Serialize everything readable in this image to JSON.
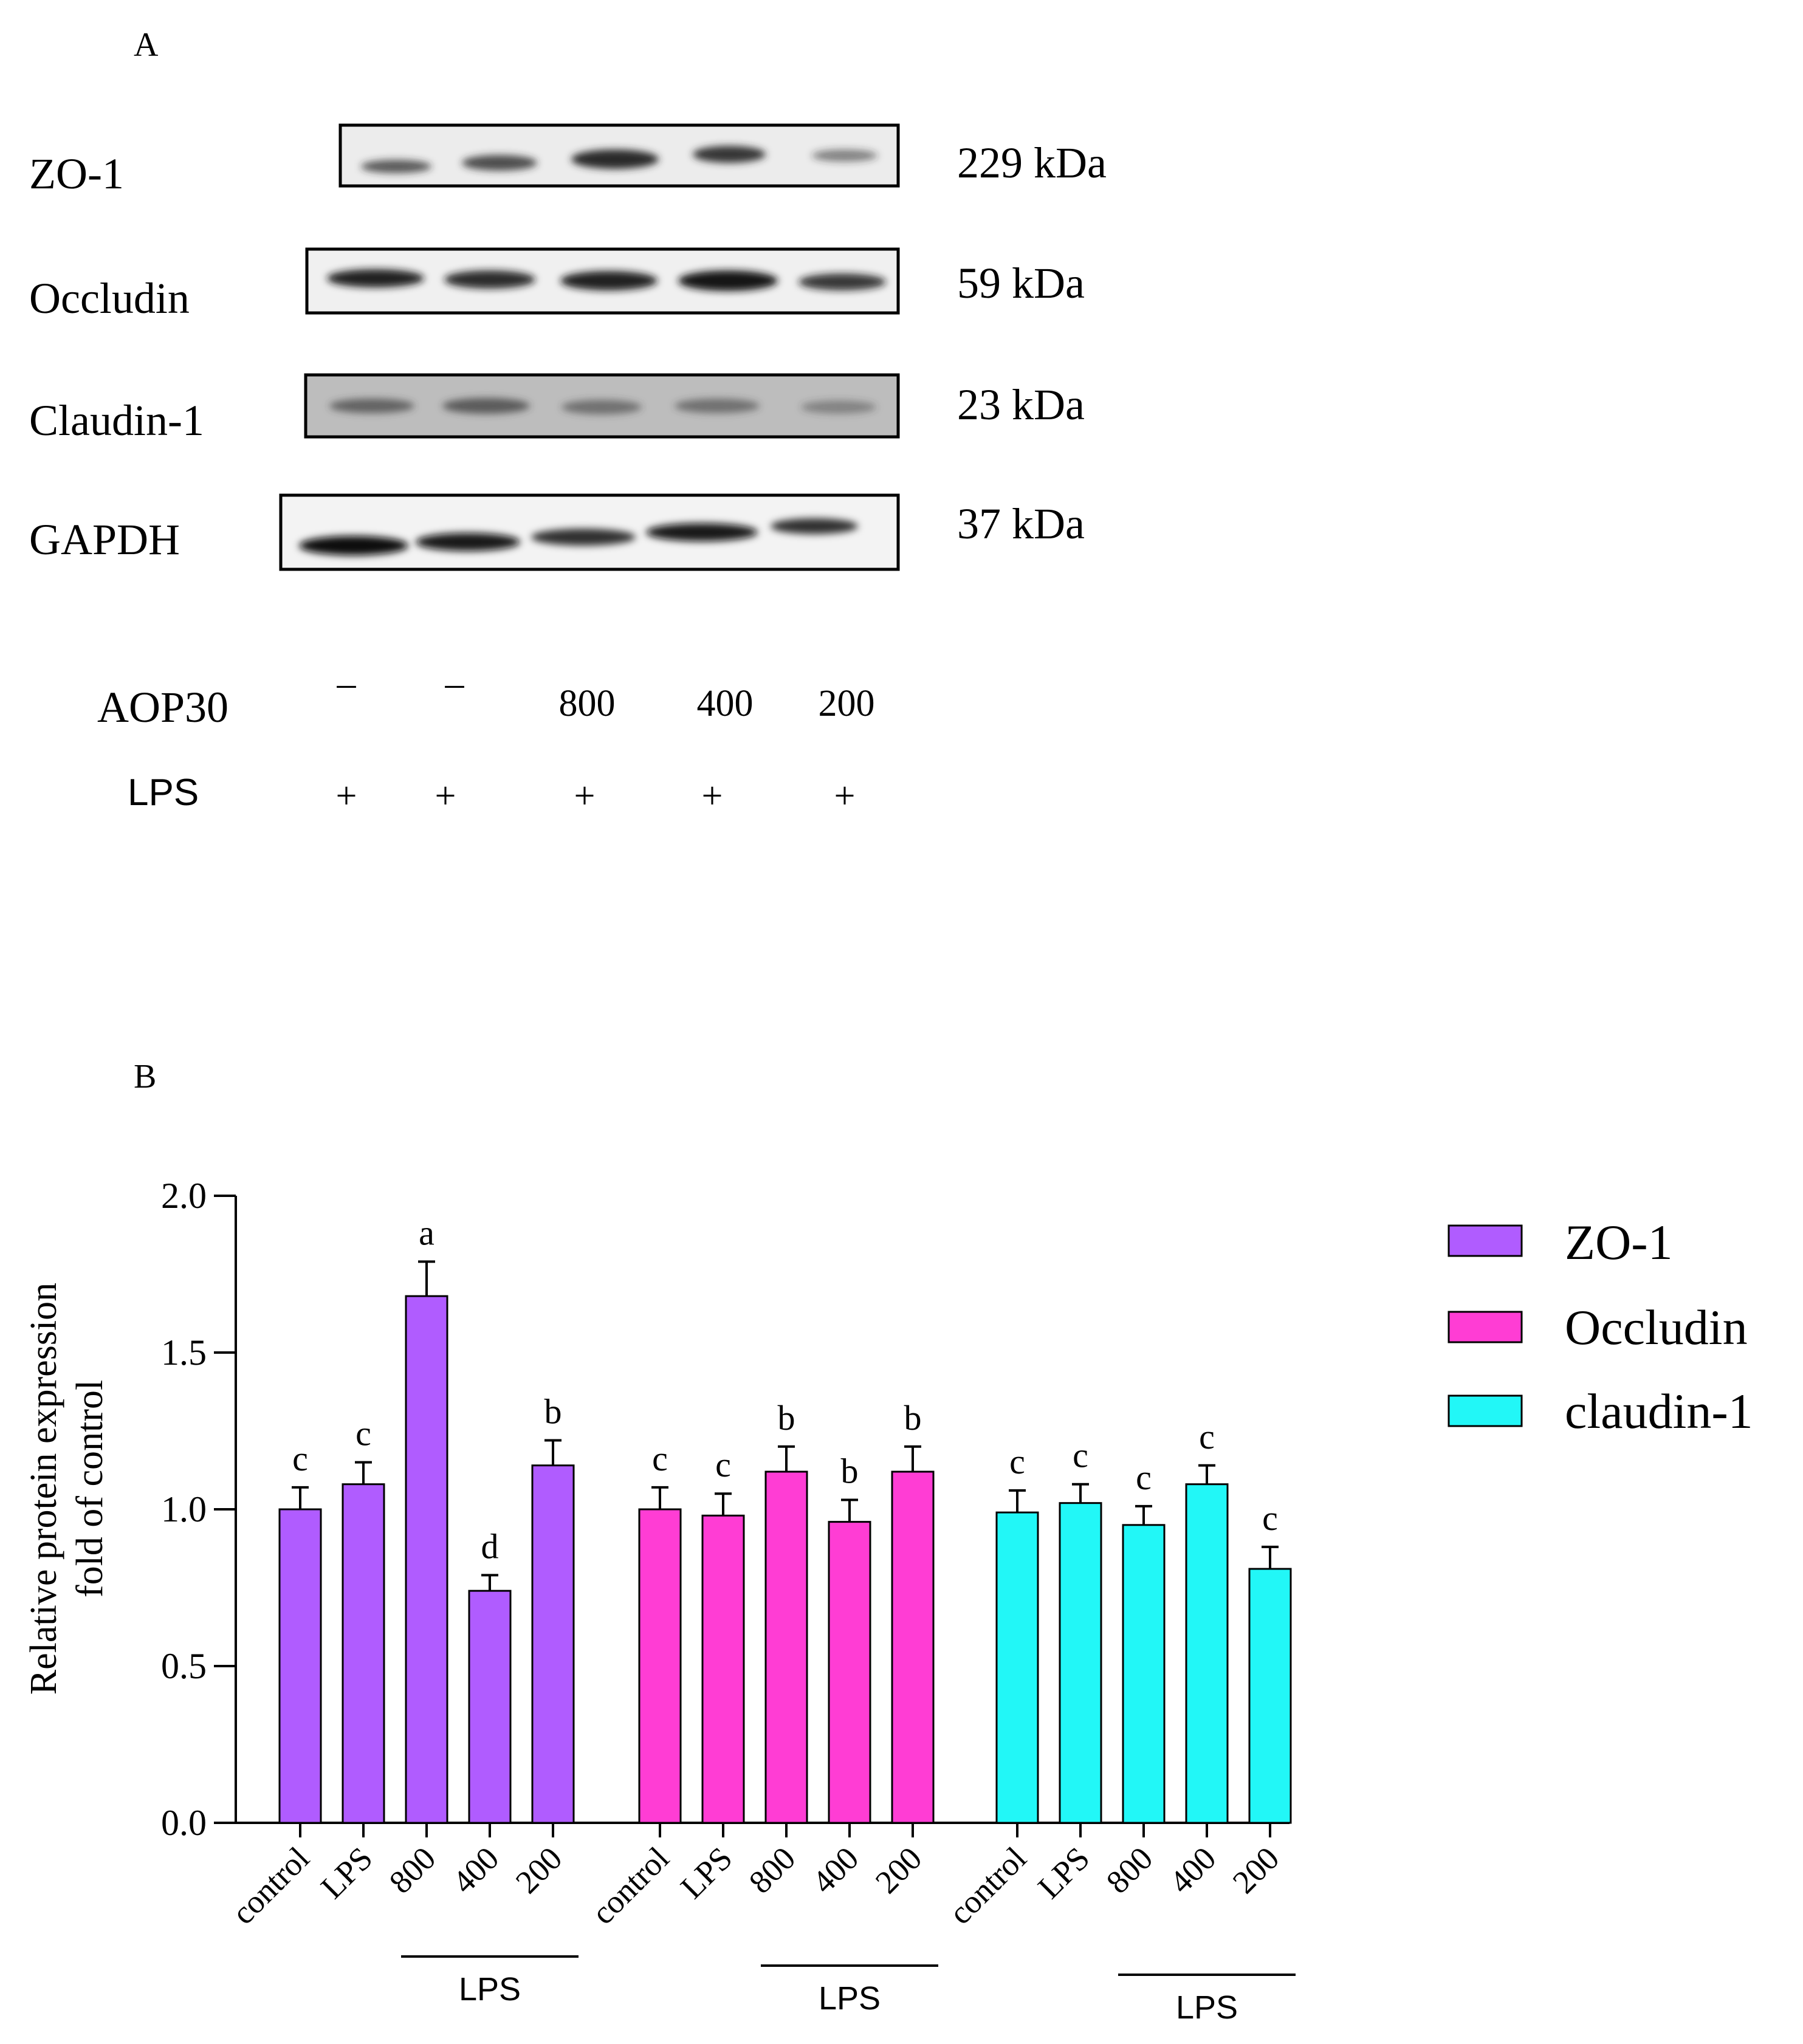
{
  "panel_a": {
    "label": "A",
    "blots": [
      {
        "protein": "ZO-1",
        "size": "229 kDa"
      },
      {
        "protein": "Occludin",
        "size": "59 kDa"
      },
      {
        "protein": "Claudin-1",
        "size": "23 kDa"
      },
      {
        "protein": "GAPDH",
        "size": "37 kDa"
      }
    ],
    "treatments": [
      {
        "name": "AOP30",
        "values": [
          "–",
          "–",
          "800",
          "400",
          "200"
        ]
      },
      {
        "name": "LPS",
        "values": [
          "+",
          "+",
          "+",
          "+",
          "+"
        ]
      }
    ]
  },
  "panel_b": {
    "label": "B"
  },
  "colors": {
    "zo1": "#b05cff",
    "occludin": "#ff3dd4",
    "claudin": "#22f7f7"
  },
  "chart_data": {
    "type": "bar",
    "title": "",
    "xlabel": "",
    "ylabel": "Relative protein expression\nfold of control",
    "ylabel_lines": [
      "Relative protein expression",
      "fold of control"
    ],
    "ylim": [
      0,
      2.0
    ],
    "yticks": [
      "0.0",
      "0.5",
      "1.0",
      "1.5",
      "2.0"
    ],
    "categories": [
      "control",
      "LPS",
      "800",
      "400",
      "200"
    ],
    "group_label": "LPS",
    "legend_position": "right",
    "series": [
      {
        "name": "ZO-1",
        "values": [
          1.0,
          1.08,
          1.68,
          0.74,
          1.14
        ],
        "errors": [
          0.07,
          0.07,
          0.11,
          0.05,
          0.08
        ],
        "letters": [
          "c",
          "c",
          "a",
          "d",
          "b"
        ]
      },
      {
        "name": "Occludin",
        "values": [
          1.0,
          0.98,
          1.12,
          0.96,
          1.12
        ],
        "errors": [
          0.07,
          0.07,
          0.08,
          0.07,
          0.08
        ],
        "letters": [
          "c",
          "c",
          "b",
          "b",
          "b"
        ]
      },
      {
        "name": "claudin-1",
        "values": [
          0.99,
          1.02,
          0.95,
          1.08,
          0.81
        ],
        "errors": [
          0.07,
          0.06,
          0.06,
          0.06,
          0.07
        ],
        "letters": [
          "c",
          "c",
          "c",
          "c",
          "c"
        ]
      }
    ]
  }
}
